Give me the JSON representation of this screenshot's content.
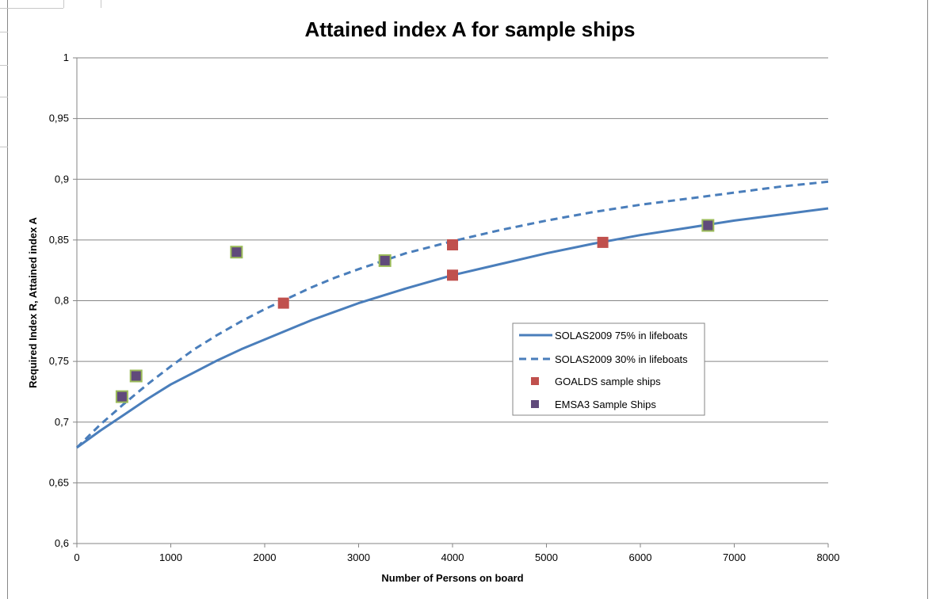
{
  "chart_data": {
    "type": "scatter",
    "title": "Attained index A for sample ships",
    "xlabel": "Number of Persons on board",
    "ylabel": "Required Index R, Attained index A",
    "xlim": [
      0,
      8000
    ],
    "ylim": [
      0.6,
      1
    ],
    "x_ticks": [
      0,
      1000,
      2000,
      3000,
      4000,
      5000,
      6000,
      7000,
      8000
    ],
    "y_ticks": [
      0.6,
      0.65,
      0.7,
      0.75,
      0.8,
      0.85,
      0.9,
      0.95,
      1
    ],
    "x_tick_labels": [
      "0",
      "1000",
      "2000",
      "3000",
      "4000",
      "5000",
      "6000",
      "7000",
      "8000"
    ],
    "y_tick_labels": [
      "0,6",
      "0,65",
      "0,7",
      "0,75",
      "0,8",
      "0,85",
      "0,9",
      "0,95",
      "1"
    ],
    "grid": "horizontal",
    "legend_position": "center-right",
    "series": [
      {
        "name": "SOLAS2009 75% in lifeboats",
        "kind": "line",
        "style": "solid",
        "color": "#4a7ebb",
        "x": [
          0,
          250,
          500,
          750,
          1000,
          1250,
          1500,
          1750,
          2000,
          2250,
          2500,
          2750,
          3000,
          3500,
          4000,
          4500,
          5000,
          5500,
          6000,
          6500,
          7000,
          7500,
          8000
        ],
        "y": [
          0.679,
          0.693,
          0.706,
          0.719,
          0.731,
          0.741,
          0.751,
          0.76,
          0.768,
          0.776,
          0.784,
          0.791,
          0.798,
          0.81,
          0.821,
          0.83,
          0.839,
          0.847,
          0.854,
          0.86,
          0.866,
          0.871,
          0.876
        ]
      },
      {
        "name": "SOLAS2009 30% in lifeboats",
        "kind": "line",
        "style": "dashed",
        "color": "#4a7ebb",
        "x": [
          0,
          250,
          500,
          750,
          1000,
          1250,
          1500,
          1750,
          2000,
          2250,
          2500,
          2750,
          3000,
          3500,
          4000,
          4500,
          5000,
          5500,
          6000,
          6500,
          7000,
          7500,
          8000
        ],
        "y": [
          0.679,
          0.698,
          0.715,
          0.731,
          0.746,
          0.76,
          0.772,
          0.783,
          0.793,
          0.802,
          0.811,
          0.819,
          0.826,
          0.839,
          0.849,
          0.858,
          0.866,
          0.873,
          0.879,
          0.884,
          0.889,
          0.894,
          0.898
        ]
      },
      {
        "name": "GOALDS sample ships",
        "kind": "marker",
        "color": "#c0504d",
        "x": [
          2200,
          4000,
          4000,
          5600
        ],
        "y": [
          0.798,
          0.846,
          0.821,
          0.848
        ]
      },
      {
        "name": "EMSA3 Sample Ships",
        "kind": "marker",
        "color": "#604a7b",
        "edge": "#9bbb59",
        "x": [
          480,
          630,
          1700,
          3280,
          6720
        ],
        "y": [
          0.721,
          0.738,
          0.84,
          0.833,
          0.862
        ]
      }
    ]
  }
}
